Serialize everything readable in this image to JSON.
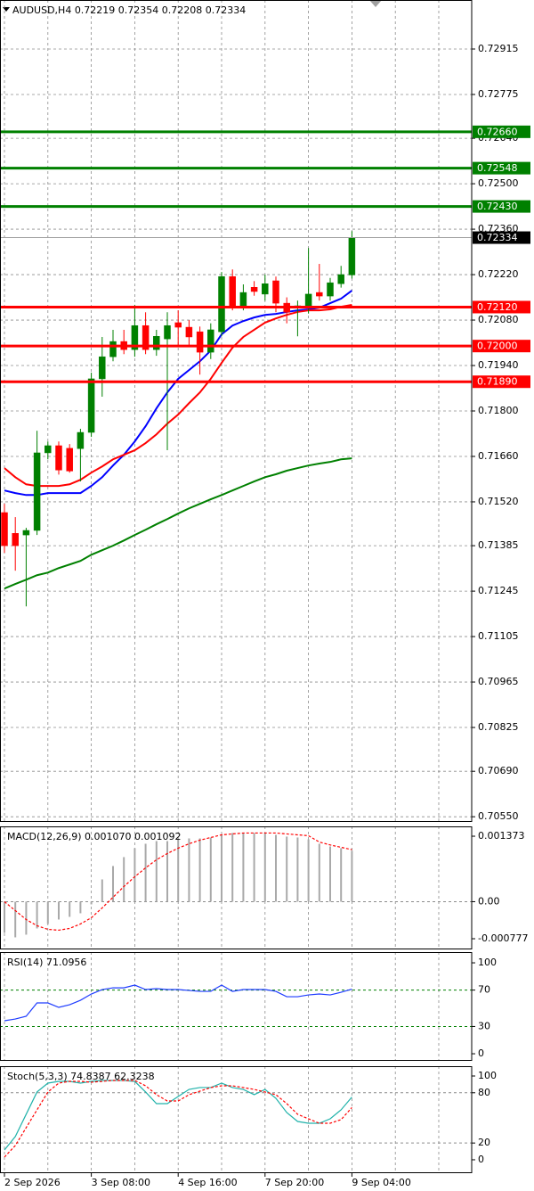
{
  "chart_data": [
    {
      "type": "candlestick",
      "title": "AUDUSD,H4  0.72219 0.72354 0.72208 0.72334",
      "categories": [
        "2 Sep 2026",
        null,
        null,
        null,
        null,
        null,
        null,
        null,
        "3 Sep 08:00",
        null,
        null,
        null,
        null,
        null,
        null,
        null,
        "4 Sep 16:00",
        null,
        null,
        null,
        null,
        null,
        null,
        null,
        "7 Sep 20:00",
        null,
        null,
        null,
        null,
        null,
        null,
        null,
        "9 Sep 04:00"
      ],
      "open": [
        0.71487,
        0.71423,
        0.71418,
        0.71432,
        0.71671,
        0.71693,
        0.71685,
        0.71684,
        0.71734,
        0.71899,
        0.71967,
        0.72014,
        0.71989,
        0.72063,
        0.71989,
        0.72022,
        0.72072,
        0.72058,
        0.72044,
        0.71981,
        0.72044,
        0.72214,
        0.72124,
        0.72181,
        0.7216,
        0.72201,
        0.72132,
        0.72118,
        0.72118,
        0.72165,
        0.72154,
        0.72192,
        0.72219
      ],
      "high": [
        0.71514,
        0.71473,
        0.7144,
        0.71739,
        0.71706,
        0.71706,
        0.71698,
        0.71745,
        0.71918,
        0.72028,
        0.7205,
        0.7205,
        0.72127,
        0.72104,
        0.7205,
        0.72104,
        0.7211,
        0.7208,
        0.7206,
        0.7207,
        0.72228,
        0.72236,
        0.7219,
        0.722,
        0.7222,
        0.72214,
        0.7215,
        0.7214,
        0.72302,
        0.72253,
        0.7221,
        0.72247,
        0.72354
      ],
      "low": [
        0.71363,
        0.71308,
        0.71198,
        0.71418,
        0.71651,
        0.71604,
        0.7161,
        0.71583,
        0.7172,
        0.71844,
        0.71953,
        0.71975,
        0.71967,
        0.71975,
        0.7197,
        0.71679,
        0.72,
        0.72,
        0.71912,
        0.7196,
        0.7203,
        0.7211,
        0.7211,
        0.72155,
        0.7214,
        0.72104,
        0.7207,
        0.7203,
        0.721,
        0.7214,
        0.7214,
        0.7218,
        0.72208
      ],
      "close": [
        0.71385,
        0.71385,
        0.71432,
        0.71671,
        0.71693,
        0.71618,
        0.71615,
        0.71734,
        0.71899,
        0.71967,
        0.72014,
        0.71989,
        0.72063,
        0.71989,
        0.7203,
        0.72063,
        0.72058,
        0.72028,
        0.71981,
        0.7205,
        0.72214,
        0.72124,
        0.72165,
        0.72168,
        0.72192,
        0.72132,
        0.72104,
        0.72124,
        0.7216,
        0.72154,
        0.72195,
        0.7222,
        0.72334
      ],
      "up_color": "#008000",
      "down_color": "#ff0000",
      "overlays": [
        {
          "color": "#0000ff",
          "values": [
            0.71555,
            0.71547,
            0.71541,
            0.71541,
            0.71547,
            0.71547,
            0.71547,
            0.71547,
            0.71569,
            0.71596,
            0.71632,
            0.71665,
            0.71706,
            0.71753,
            0.71808,
            0.71857,
            0.71899,
            0.71926,
            0.71953,
            0.71986,
            0.72036,
            0.72063,
            0.72077,
            0.72088,
            0.72096,
            0.72099,
            0.72105,
            0.7211,
            0.72113,
            0.72118,
            0.72132,
            0.72146,
            0.72171
          ]
        },
        {
          "color": "#ff0000",
          "values": [
            0.71624,
            0.71596,
            0.71574,
            0.71569,
            0.71569,
            0.71569,
            0.71574,
            0.71588,
            0.7161,
            0.71629,
            0.71651,
            0.71665,
            0.71679,
            0.71701,
            0.71728,
            0.71761,
            0.71789,
            0.71824,
            0.71857,
            0.71899,
            0.71948,
            0.71995,
            0.72028,
            0.7205,
            0.72072,
            0.72085,
            0.72096,
            0.72105,
            0.7211,
            0.7211,
            0.72113,
            0.72121,
            0.72127
          ]
        },
        {
          "color": "#008000",
          "values": [
            0.71253,
            0.71267,
            0.7128,
            0.71294,
            0.71302,
            0.71316,
            0.71327,
            0.71338,
            0.71357,
            0.71371,
            0.71385,
            0.71401,
            0.71418,
            0.71434,
            0.71451,
            0.71467,
            0.71484,
            0.715,
            0.71514,
            0.71528,
            0.71541,
            0.71555,
            0.71569,
            0.71583,
            0.71596,
            0.71605,
            0.71616,
            0.71624,
            0.71632,
            0.71638,
            0.71643,
            0.71651,
            0.71654
          ]
        }
      ],
      "levels": [
        {
          "value": 0.7266,
          "label": "0.72660",
          "color": "#008000"
        },
        {
          "value": 0.72548,
          "label": "0.72548",
          "color": "#008000"
        },
        {
          "value": 0.7243,
          "label": "0.72430",
          "color": "#008000"
        },
        {
          "value": 0.7212,
          "label": "0.72120",
          "color": "#ff0000"
        },
        {
          "value": 0.72,
          "label": "0.72000",
          "color": "#ff0000"
        },
        {
          "value": 0.7189,
          "label": "0.71890",
          "color": "#ff0000"
        }
      ],
      "last_price": {
        "value": 0.72334,
        "label": "0.72334",
        "color": "#000000"
      },
      "ylim": [
        0.70534,
        0.73066
      ],
      "yticks": [
        0.72915,
        0.72775,
        {
          "value": 0.7264,
          "label": "0.72640"
        },
        {
          "value": 0.725,
          "label": "0.72500"
        },
        {
          "value": 0.7236,
          "label": "0.72360"
        },
        {
          "value": 0.7222,
          "label": "0.72220"
        },
        {
          "value": 0.7208,
          "label": "0.72080"
        },
        {
          "value": 0.7194,
          "label": "0.71940"
        },
        {
          "value": 0.718,
          "label": "0.71800"
        },
        {
          "value": 0.7166,
          "label": "0.71660"
        },
        {
          "value": 0.7152,
          "label": "0.71520"
        },
        0.71385,
        0.71245,
        0.71105,
        0.70965,
        0.70825,
        {
          "value": 0.7069,
          "label": "0.70690"
        },
        {
          "value": 0.7055,
          "label": "0.70550"
        }
      ],
      "grid": true
    },
    {
      "type": "line",
      "title": "MACD(12,26,9) 0.001070 0.001092",
      "series": [
        {
          "style": "histogram",
          "color": "#a9a9a9",
          "values": [
            -0.000654,
            -0.000748,
            -0.000692,
            -0.000561,
            -0.000467,
            -0.000374,
            -0.000318,
            -0.000243,
            -5.6e-05,
            0.000467,
            0.000748,
            0.000935,
            0.001122,
            0.001215,
            0.001271,
            0.001271,
            0.001309,
            0.001327,
            0.001327,
            0.001346,
            0.001402,
            0.00144,
            0.00144,
            0.00144,
            0.00144,
            0.001402,
            0.001365,
            0.001346,
            0.001309,
            0.001215,
            0.001159,
            0.001122,
            0.00107
          ]
        },
        {
          "style": "dashed",
          "color": "#ff0000",
          "values": [
            0,
            -0.000187,
            -0.000374,
            -0.000505,
            -0.00058,
            -0.000598,
            -0.000561,
            -0.000467,
            -0.000337,
            -0.000131,
            9.3e-05,
            0.000318,
            0.000523,
            0.00071,
            0.000879,
            0.00101,
            0.001122,
            0.001215,
            0.00129,
            0.001346,
            0.001402,
            0.001421,
            0.00144,
            0.00144,
            0.00144,
            0.00144,
            0.001421,
            0.001402,
            0.001384,
            0.00125,
            0.00119,
            0.00114,
            0.001092
          ]
        }
      ],
      "levels": [
        0
      ],
      "level_color": "#8c8c8c",
      "ylim": [
        -0.001001,
        0.001579
      ],
      "yticks": [
        -0.000777,
        {
          "value": 0,
          "label": "0.00"
        },
        0.001373
      ],
      "grid": false
    },
    {
      "type": "line",
      "title": "RSI(14) 71.0956",
      "series": [
        {
          "style": "solid",
          "color": "#1e3cff",
          "values": [
            36.3,
            38.2,
            41.2,
            55.9,
            55.9,
            51,
            53.9,
            58.8,
            65.7,
            70.6,
            72.5,
            72.5,
            75.5,
            70.6,
            71.6,
            70.6,
            70.6,
            69.6,
            68.6,
            68.6,
            75.5,
            68.6,
            70.6,
            70.6,
            70.6,
            68.6,
            62.7,
            62.7,
            64.7,
            65.7,
            64.7,
            67.6,
            71.0956
          ]
        }
      ],
      "levels": [
        30,
        70
      ],
      "level_color": "#008000",
      "ylim": [
        -7.8,
        111.8
      ],
      "yticks": [
        0,
        30,
        70,
        100
      ],
      "grid": false
    },
    {
      "type": "line",
      "title": "Stoch(5,3,3) 74.8387 62.3238",
      "series": [
        {
          "style": "solid",
          "color": "#20b2aa",
          "values": [
            11.7,
            27.7,
            54.3,
            80.9,
            91.5,
            93.6,
            93.6,
            91.5,
            93.6,
            94.7,
            94.7,
            94.7,
            93.6,
            80.9,
            67,
            67,
            75.5,
            84,
            86.2,
            86.2,
            91.5,
            86.2,
            84,
            77.7,
            84,
            73.4,
            56.4,
            45.7,
            43.6,
            43.6,
            48.9,
            59.6,
            74.8387
          ]
        },
        {
          "style": "dashed",
          "color": "#ff0000",
          "values": [
            3.2,
            17,
            38.3,
            59.6,
            80.9,
            91.5,
            93.6,
            93.6,
            92.6,
            93.6,
            94.7,
            94.7,
            94.7,
            88.3,
            77.7,
            70.2,
            70.2,
            77.7,
            81.9,
            86.2,
            88.3,
            88.3,
            86.2,
            84,
            80.9,
            77.7,
            67,
            54.3,
            48.9,
            43.6,
            43.6,
            47.9,
            62.3238
          ]
        }
      ],
      "levels": [
        20,
        80
      ],
      "level_color": "#8c8c8c",
      "ylim": [
        -16,
        111.7
      ],
      "yticks": [
        0,
        20,
        80,
        100
      ],
      "grid": false
    }
  ]
}
